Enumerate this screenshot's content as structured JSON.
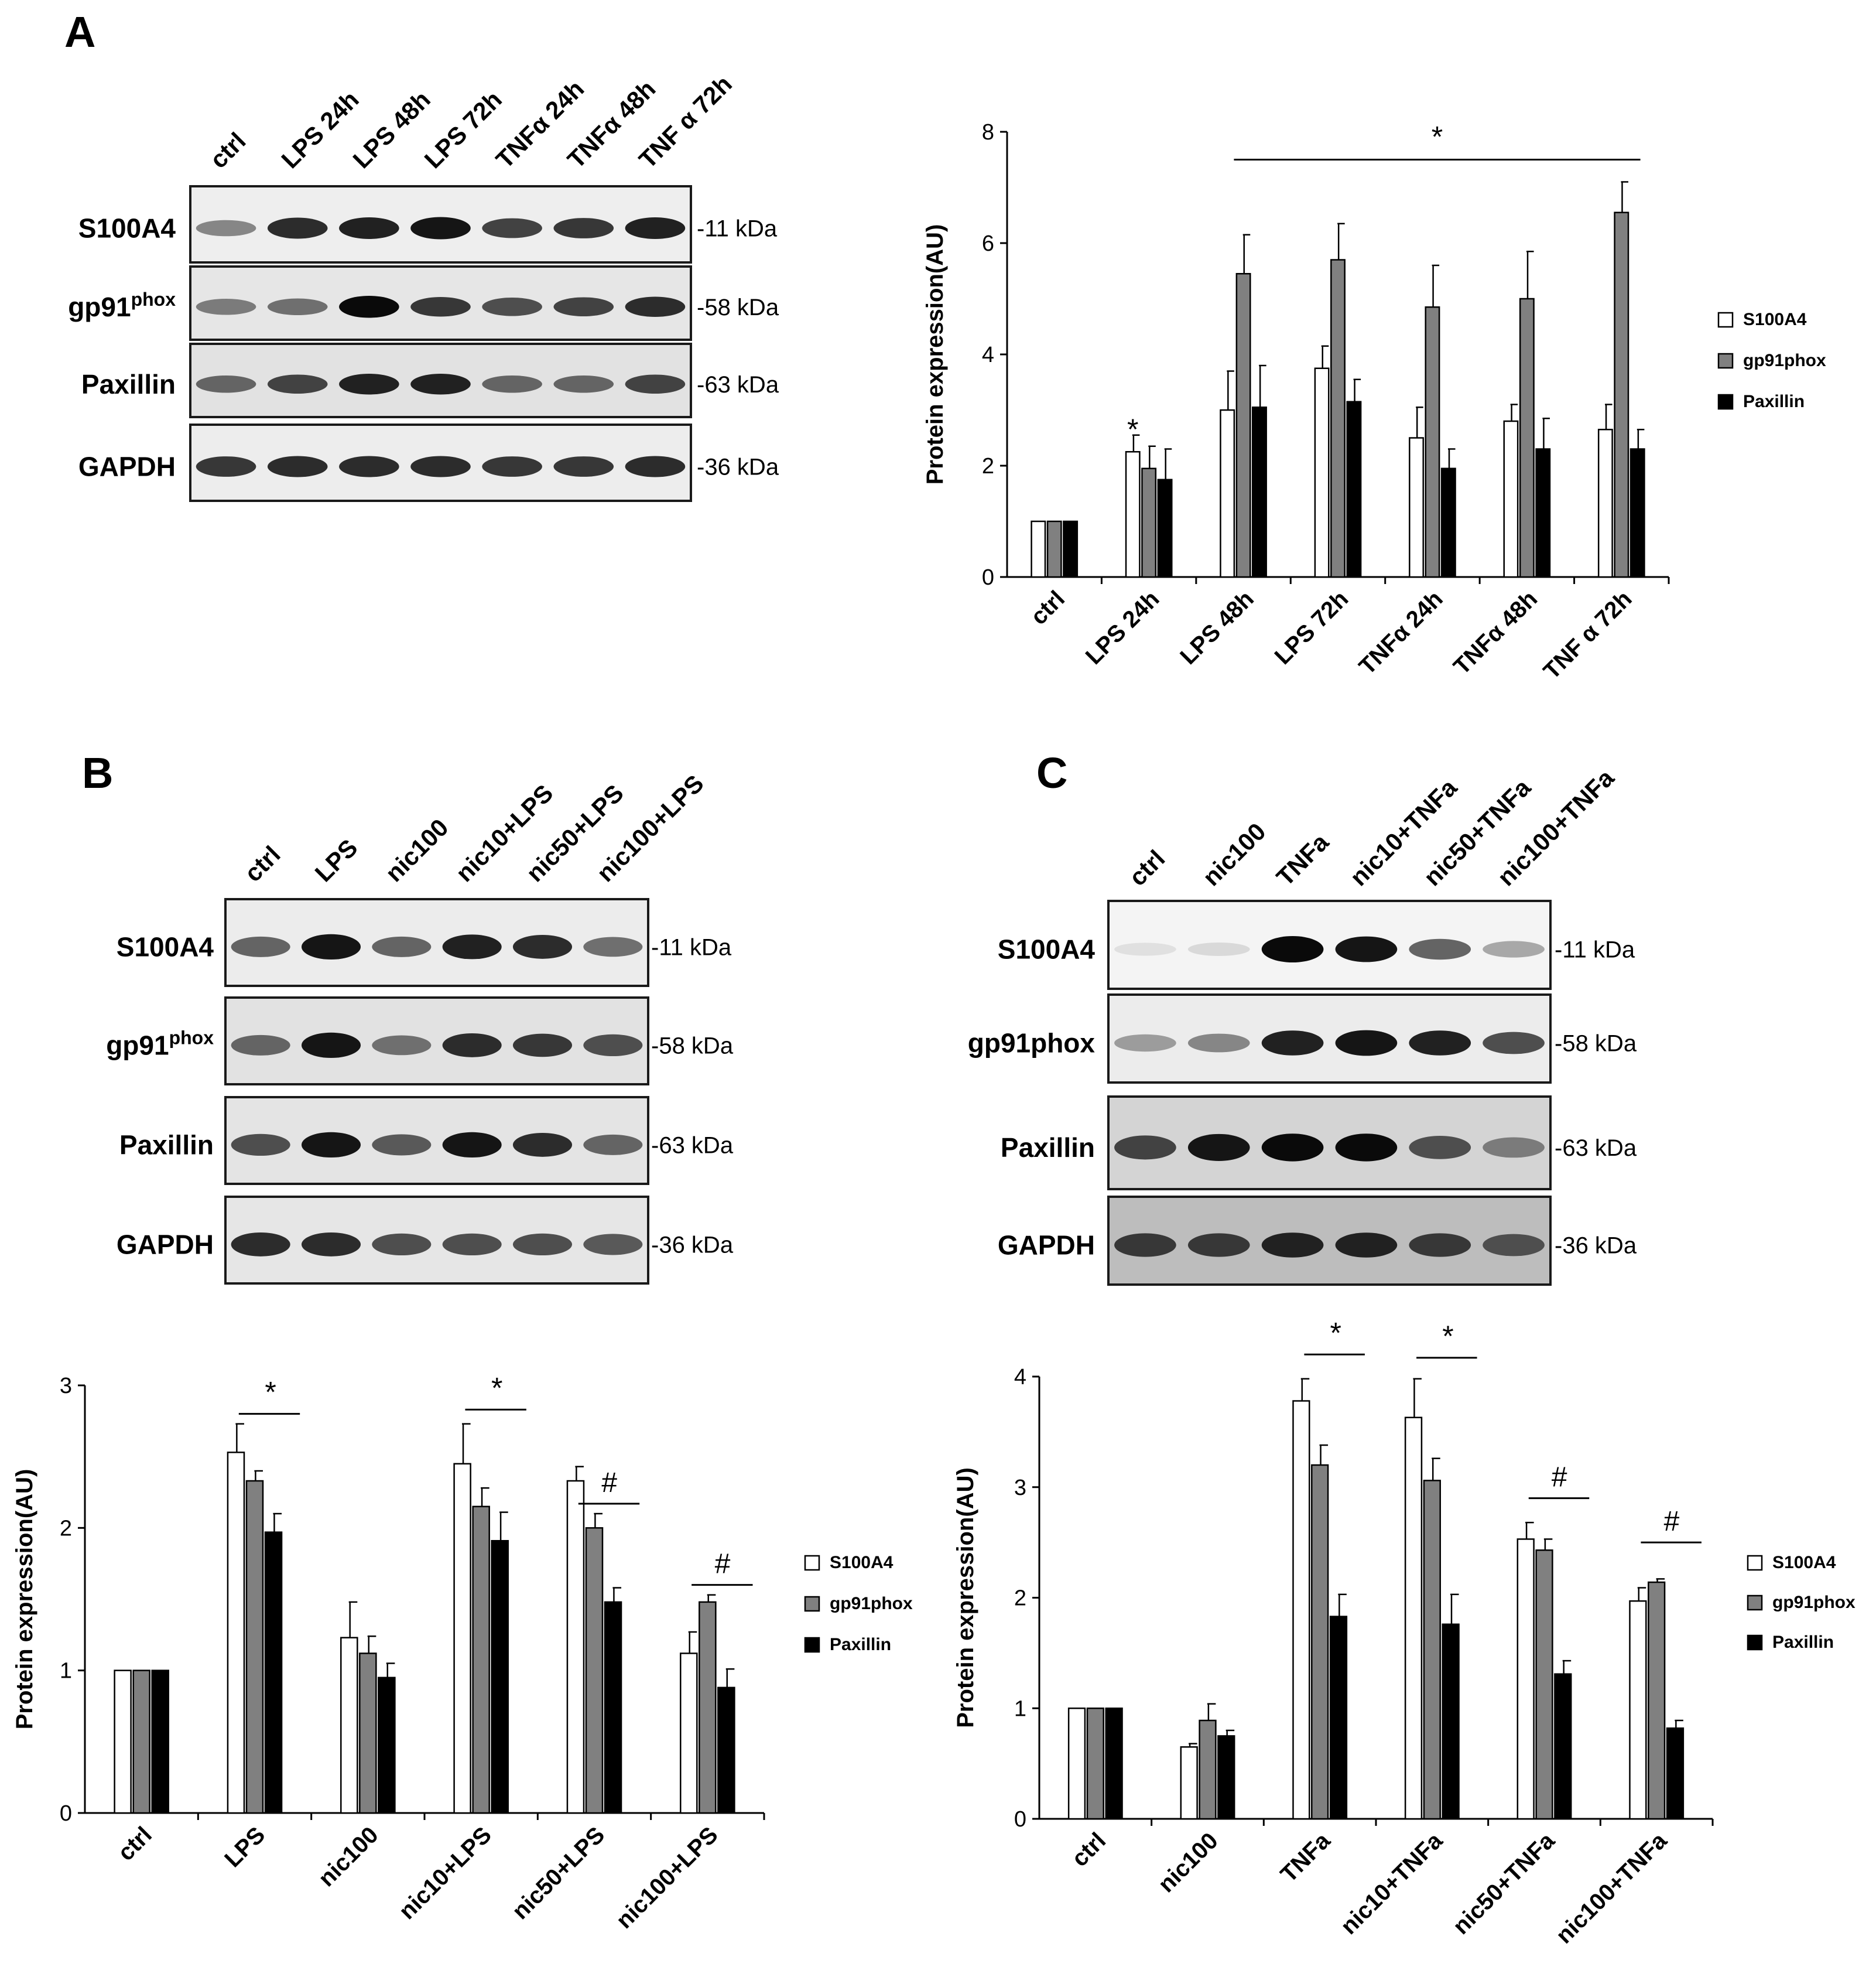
{
  "panels": [
    {
      "letter": "A",
      "blot": {
        "lanes": [
          "ctrl",
          "LPS 24h",
          "LPS 48h",
          "LPS 72h",
          "TNFα 24h",
          "TNFα 48h",
          "TNF α 72h"
        ],
        "rows": [
          {
            "label": "S100A4",
            "sup": "",
            "kda": "-11 kDa",
            "intensity": [
              0.45,
              0.85,
              0.9,
              0.95,
              0.75,
              0.8,
              0.9
            ],
            "bg": "#eeeeee"
          },
          {
            "label": "gp91",
            "sup": "phox",
            "kda": "-58 kDa",
            "intensity": [
              0.5,
              0.55,
              1.0,
              0.8,
              0.7,
              0.75,
              0.85
            ],
            "bg": "#e6e6e6"
          },
          {
            "label": "Paxillin",
            "sup": "",
            "kda": "-63 kDa",
            "intensity": [
              0.6,
              0.75,
              0.9,
              0.9,
              0.6,
              0.6,
              0.75
            ],
            "bg": "#e2e2e2"
          },
          {
            "label": "GAPDH",
            "sup": "",
            "kda": "-36 kDa",
            "intensity": [
              0.8,
              0.85,
              0.85,
              0.85,
              0.8,
              0.8,
              0.85
            ],
            "bg": "#ededed"
          }
        ]
      }
    },
    {
      "letter": "B",
      "blot": {
        "lanes": [
          "ctrl",
          "LPS",
          "nic100",
          "nic10+LPS",
          "nic50+LPS",
          "nic100+LPS"
        ],
        "rows": [
          {
            "label": "S100A4",
            "sup": "",
            "kda": "-11 kDa",
            "intensity": [
              0.6,
              0.95,
              0.6,
              0.9,
              0.85,
              0.55
            ],
            "bg": "#ececec"
          },
          {
            "label": "gp91",
            "sup": "phox",
            "kda": "-58 kDa",
            "intensity": [
              0.6,
              0.95,
              0.55,
              0.85,
              0.8,
              0.7
            ],
            "bg": "#e2e2e2"
          },
          {
            "label": "Paxillin",
            "sup": "",
            "kda": "-63 kDa",
            "intensity": [
              0.7,
              0.95,
              0.65,
              0.95,
              0.85,
              0.6
            ],
            "bg": "#e4e4e4"
          },
          {
            "label": "GAPDH",
            "sup": "",
            "kda": "-36 kDa",
            "intensity": [
              0.85,
              0.85,
              0.7,
              0.7,
              0.7,
              0.65
            ],
            "bg": "#e6e6e6"
          }
        ]
      }
    },
    {
      "letter": "C",
      "blot": {
        "lanes": [
          "ctrl",
          "nic100",
          "TNFa",
          "nic10+TNFa",
          "nic50+TNFa",
          "nic100+TNFa"
        ],
        "rows": [
          {
            "label": "S100A4",
            "sup": "",
            "kda": "-11 kDa",
            "intensity": [
              0.05,
              0.08,
              1.0,
              0.95,
              0.6,
              0.3
            ],
            "bg": "#f4f4f4"
          },
          {
            "label": "gp91phox",
            "sup": "",
            "kda": "-58 kDa",
            "intensity": [
              0.35,
              0.45,
              0.9,
              0.95,
              0.9,
              0.7
            ],
            "bg": "#ececec"
          },
          {
            "label": "Paxillin",
            "sup": "",
            "kda": "-63 kDa",
            "intensity": [
              0.75,
              0.95,
              1.0,
              1.0,
              0.7,
              0.5
            ],
            "bg": "#d4d4d4"
          },
          {
            "label": "GAPDH",
            "sup": "",
            "kda": "-36 kDa",
            "intensity": [
              0.8,
              0.8,
              0.9,
              0.9,
              0.8,
              0.7
            ],
            "bg": "#bdbdbd"
          }
        ]
      }
    }
  ],
  "series_colors": {
    "S100A4": "#ffffff",
    "gp91phox": "#808080",
    "Paxillin": "#000000"
  },
  "chart_data": [
    {
      "type": "bar",
      "panel": "A",
      "ylabel": "Protein expression(AU)",
      "ylim": [
        0,
        8
      ],
      "yticks": [
        0,
        2,
        4,
        6,
        8
      ],
      "legend_position": "right",
      "categories": [
        "ctrl",
        "LPS 24h",
        "LPS 48h",
        "LPS 72h",
        "TNFα 24h",
        "TNFα 48h",
        "TNF α 72h"
      ],
      "series": [
        {
          "name": "S100A4",
          "values": [
            1.0,
            2.25,
            3.0,
            3.75,
            2.5,
            2.8,
            2.65
          ],
          "errors": [
            0,
            0.3,
            0.7,
            0.4,
            0.55,
            0.3,
            0.45
          ]
        },
        {
          "name": "gp91phox",
          "values": [
            1.0,
            1.95,
            5.45,
            5.7,
            4.85,
            5.0,
            6.55
          ],
          "errors": [
            0,
            0.4,
            0.7,
            0.65,
            0.75,
            0.85,
            0.55
          ]
        },
        {
          "name": "Paxillin",
          "values": [
            1.0,
            1.75,
            3.05,
            3.15,
            1.95,
            2.3,
            2.3
          ],
          "errors": [
            0,
            0.55,
            0.75,
            0.4,
            0.35,
            0.55,
            0.35
          ]
        }
      ],
      "annotations": [
        {
          "text": "*",
          "category": "LPS 24h",
          "bar": false,
          "y": 2.6
        },
        {
          "text": "*",
          "line_from": "LPS 48h",
          "line_to": "TNF α 72h",
          "y": 7.5
        }
      ]
    },
    {
      "type": "bar",
      "panel": "B",
      "ylabel": "Protein expression(AU)",
      "ylim": [
        0,
        3
      ],
      "yticks": [
        0,
        1,
        2,
        3
      ],
      "legend_position": "right",
      "categories": [
        "ctrl",
        "LPS",
        "nic100",
        "nic10+LPS",
        "nic50+LPS",
        "nic100+LPS"
      ],
      "series": [
        {
          "name": "S100A4",
          "values": [
            1.0,
            2.53,
            1.23,
            2.45,
            2.33,
            1.12
          ],
          "errors": [
            0,
            0.2,
            0.25,
            0.28,
            0.1,
            0.15
          ]
        },
        {
          "name": "gp91phox",
          "values": [
            1.0,
            2.33,
            1.12,
            2.15,
            2.0,
            1.48
          ],
          "errors": [
            0,
            0.07,
            0.12,
            0.13,
            0.1,
            0.05
          ]
        },
        {
          "name": "Paxillin",
          "values": [
            1.0,
            1.97,
            0.95,
            1.91,
            1.48,
            0.88
          ],
          "errors": [
            0,
            0.13,
            0.1,
            0.2,
            0.1,
            0.13
          ]
        }
      ],
      "annotations": [
        {
          "text": "*",
          "category": "LPS",
          "y": 2.8
        },
        {
          "text": "*",
          "category": "nic10+LPS",
          "y": 2.83
        },
        {
          "text": "#",
          "category": "nic50+LPS",
          "y": 2.17
        },
        {
          "text": "#",
          "category": "nic100+LPS",
          "y": 1.6
        }
      ]
    },
    {
      "type": "bar",
      "panel": "C",
      "ylabel": "Protein expression(AU)",
      "ylim": [
        0,
        4
      ],
      "yticks": [
        0,
        1,
        2,
        3,
        4
      ],
      "legend_position": "right",
      "categories": [
        "ctrl",
        "nic100",
        "TNFa",
        "nic10+TNFa",
        "nic50+TNFa",
        "nic100+TNFa"
      ],
      "series": [
        {
          "name": "S100A4",
          "values": [
            1.0,
            0.65,
            3.78,
            3.63,
            2.53,
            1.97
          ],
          "errors": [
            0,
            0.03,
            0.2,
            0.35,
            0.15,
            0.12
          ]
        },
        {
          "name": "gp91phox",
          "values": [
            1.0,
            0.89,
            3.2,
            3.06,
            2.43,
            2.14
          ],
          "errors": [
            0,
            0.15,
            0.18,
            0.2,
            0.1,
            0.03
          ]
        },
        {
          "name": "Paxillin",
          "values": [
            1.0,
            0.75,
            1.83,
            1.76,
            1.31,
            0.82
          ],
          "errors": [
            0,
            0.05,
            0.2,
            0.27,
            0.12,
            0.07
          ]
        }
      ],
      "annotations": [
        {
          "text": "*",
          "category": "TNFa",
          "y": 4.2
        },
        {
          "text": "*",
          "category": "nic10+TNFa",
          "y": 4.17
        },
        {
          "text": "#",
          "category": "nic50+TNFa",
          "y": 2.9
        },
        {
          "text": "#",
          "category": "nic100+TNFa",
          "y": 2.5
        }
      ]
    }
  ]
}
